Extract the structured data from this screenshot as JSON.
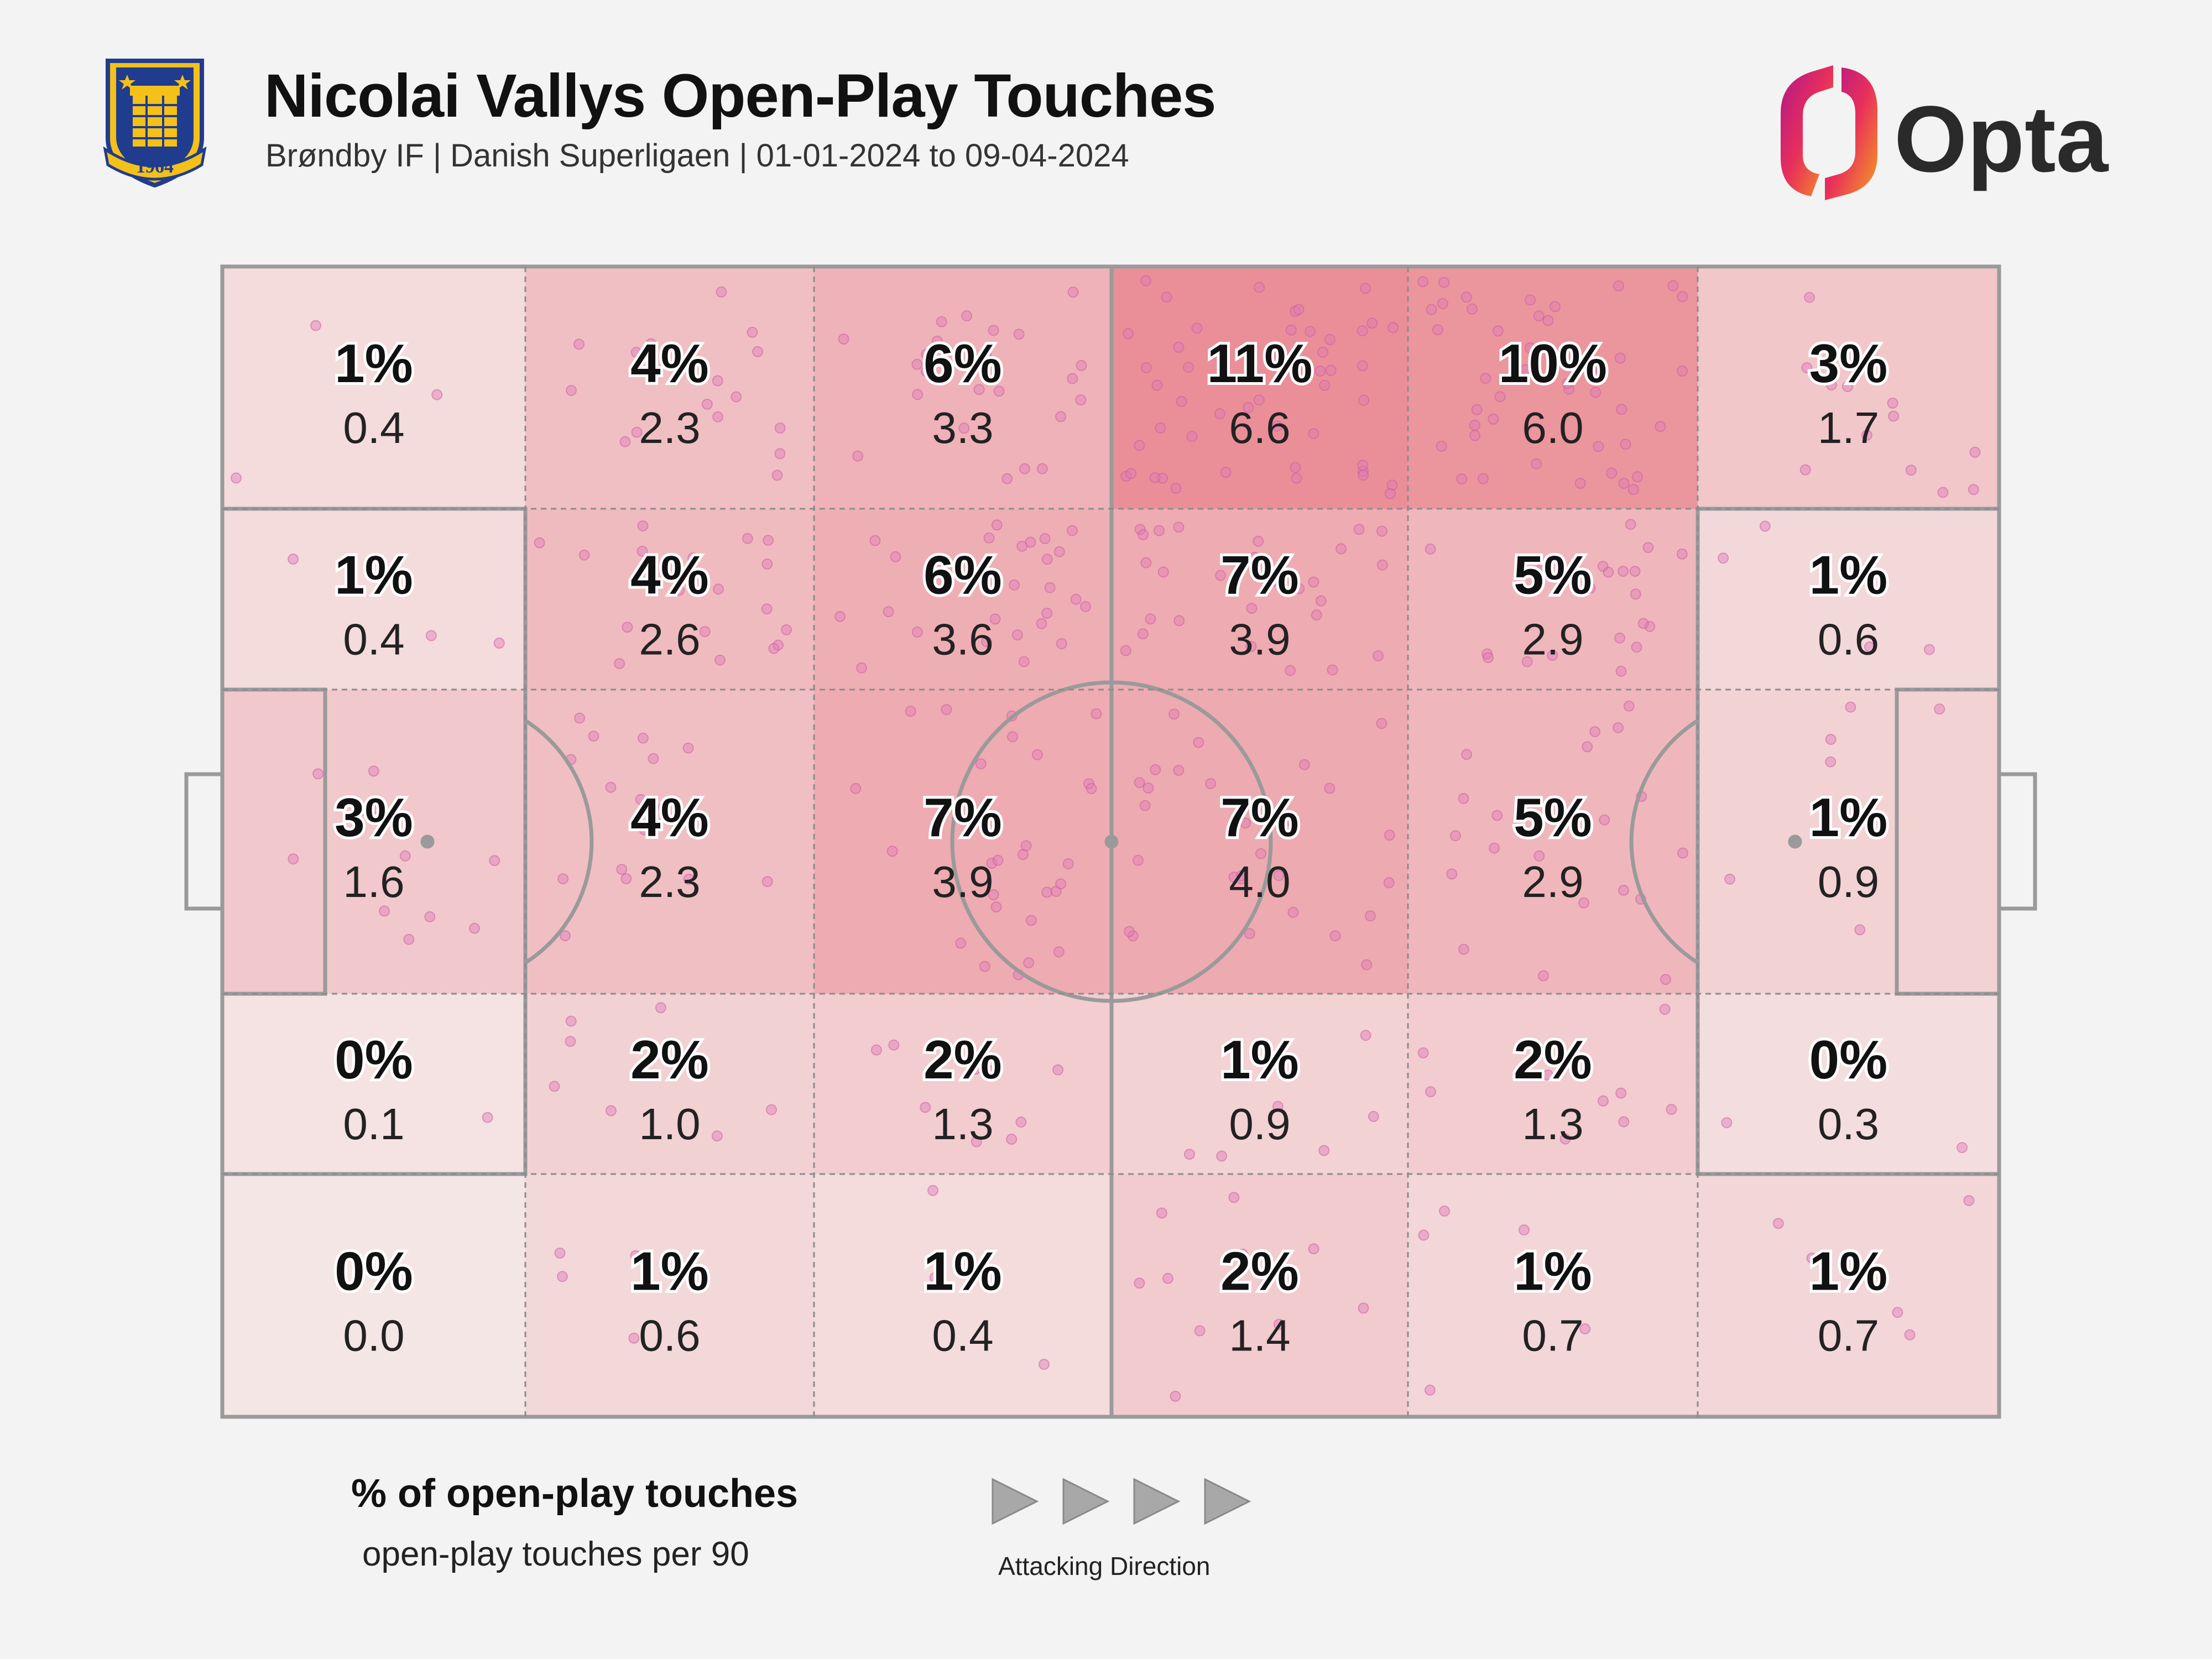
{
  "header": {
    "title": "Nicolai Vallys Open-Play Touches",
    "subtitle": "Brøndby IF | Danish Superligaen | 01-01-2024 to 09-04-2024",
    "crest_year": "1964",
    "brand": "Opta"
  },
  "legend": {
    "pct_label": "% of open-play touches",
    "per90_label": "open-play touches per 90",
    "direction_label": "Attacking Direction"
  },
  "colors": {
    "background": "#f3f3f3",
    "heat_low": "#f5e6e6",
    "heat_high": "#ea8f98",
    "dot": "#e07ab8",
    "lines": "#9a9a9a",
    "arrow": "#a8a8a8",
    "crest_blue": "#1f3c8f",
    "crest_yellow": "#f4c01a",
    "opta_dark": "#2a2a2a"
  },
  "chart_data": {
    "type": "heatmap",
    "description_of_axes": "pitch zones, attacking left to right",
    "columns": 6,
    "rows": 5,
    "cells": [
      [
        {
          "pct": "1%",
          "per90": "0.4"
        },
        {
          "pct": "4%",
          "per90": "2.3"
        },
        {
          "pct": "6%",
          "per90": "3.3"
        },
        {
          "pct": "11%",
          "per90": "6.6"
        },
        {
          "pct": "10%",
          "per90": "6.0"
        },
        {
          "pct": "3%",
          "per90": "1.7"
        }
      ],
      [
        {
          "pct": "1%",
          "per90": "0.4"
        },
        {
          "pct": "4%",
          "per90": "2.6"
        },
        {
          "pct": "6%",
          "per90": "3.6"
        },
        {
          "pct": "7%",
          "per90": "3.9"
        },
        {
          "pct": "5%",
          "per90": "2.9"
        },
        {
          "pct": "1%",
          "per90": "0.6"
        }
      ],
      [
        {
          "pct": "3%",
          "per90": "1.6"
        },
        {
          "pct": "4%",
          "per90": "2.3"
        },
        {
          "pct": "7%",
          "per90": "3.9"
        },
        {
          "pct": "7%",
          "per90": "4.0"
        },
        {
          "pct": "5%",
          "per90": "2.9"
        },
        {
          "pct": "1%",
          "per90": "0.9"
        }
      ],
      [
        {
          "pct": "0%",
          "per90": "0.1"
        },
        {
          "pct": "2%",
          "per90": "1.0"
        },
        {
          "pct": "2%",
          "per90": "1.3"
        },
        {
          "pct": "1%",
          "per90": "0.9"
        },
        {
          "pct": "2%",
          "per90": "1.3"
        },
        {
          "pct": "0%",
          "per90": "0.3"
        }
      ],
      [
        {
          "pct": "0%",
          "per90": "0.0"
        },
        {
          "pct": "1%",
          "per90": "0.6"
        },
        {
          "pct": "1%",
          "per90": "0.4"
        },
        {
          "pct": "2%",
          "per90": "1.4"
        },
        {
          "pct": "1%",
          "per90": "0.7"
        },
        {
          "pct": "1%",
          "per90": "0.7"
        }
      ]
    ]
  }
}
